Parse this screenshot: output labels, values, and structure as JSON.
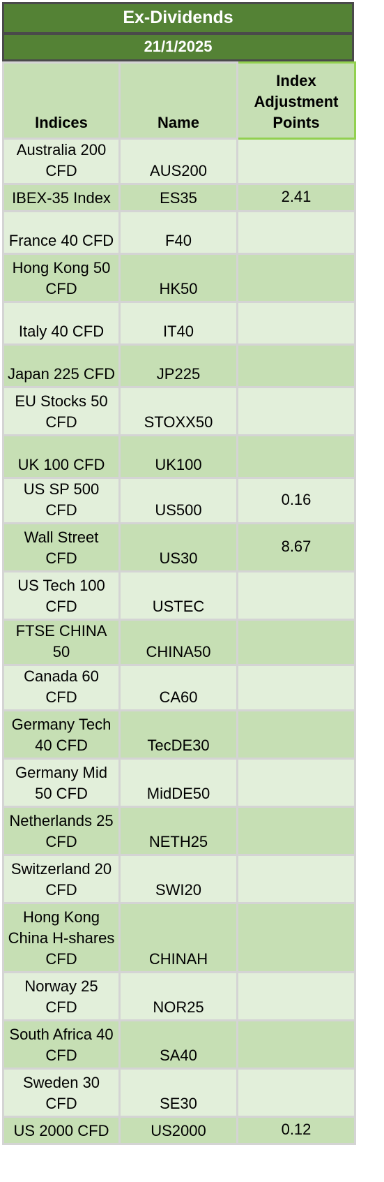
{
  "title": "Ex-Dividends",
  "date": "21/1/2025",
  "headers": {
    "indices": "Indices",
    "name": "Name",
    "points": "Index Adjustment Points"
  },
  "rows": [
    {
      "index": "Australia 200 CFD",
      "name": "AUS200",
      "points": ""
    },
    {
      "index": "IBEX-35 Index",
      "name": "ES35",
      "points": "2.41"
    },
    {
      "index": "France 40 CFD",
      "name": "F40",
      "points": ""
    },
    {
      "index": "Hong Kong 50 CFD",
      "name": "HK50",
      "points": ""
    },
    {
      "index": "Italy 40 CFD",
      "name": "IT40",
      "points": ""
    },
    {
      "index": "Japan 225 CFD",
      "name": "JP225",
      "points": ""
    },
    {
      "index": "EU Stocks 50 CFD",
      "name": "STOXX50",
      "points": ""
    },
    {
      "index": "UK 100 CFD",
      "name": "UK100",
      "points": ""
    },
    {
      "index": "US SP 500 CFD",
      "name": "US500",
      "points": "0.16"
    },
    {
      "index": "Wall Street CFD",
      "name": "US30",
      "points": "8.67"
    },
    {
      "index": "US Tech 100 CFD",
      "name": "USTEC",
      "points": ""
    },
    {
      "index": "FTSE CHINA 50",
      "name": "CHINA50",
      "points": ""
    },
    {
      "index": "Canada 60 CFD",
      "name": "CA60",
      "points": ""
    },
    {
      "index": "Germany Tech 40 CFD",
      "name": "TecDE30",
      "points": ""
    },
    {
      "index": "Germany Mid 50 CFD",
      "name": "MidDE50",
      "points": ""
    },
    {
      "index": "Netherlands 25 CFD",
      "name": "NETH25",
      "points": ""
    },
    {
      "index": "Switzerland 20 CFD",
      "name": "SWI20",
      "points": ""
    },
    {
      "index": "Hong Kong China H-shares CFD",
      "name": "CHINAH",
      "points": ""
    },
    {
      "index": "Norway 25 CFD",
      "name": "NOR25",
      "points": ""
    },
    {
      "index": "South Africa 40 CFD",
      "name": "SA40",
      "points": ""
    },
    {
      "index": "Sweden 30 CFD",
      "name": "SE30",
      "points": ""
    },
    {
      "index": "US 2000 CFD",
      "name": "US2000",
      "points": "0.12"
    }
  ]
}
